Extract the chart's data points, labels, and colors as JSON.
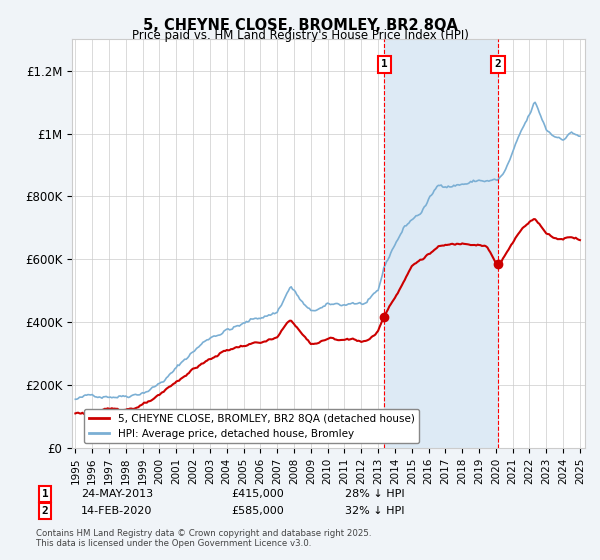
{
  "title": "5, CHEYNE CLOSE, BROMLEY, BR2 8QA",
  "subtitle": "Price paid vs. HM Land Registry's House Price Index (HPI)",
  "ylim": [
    0,
    1300000
  ],
  "yticks": [
    0,
    200000,
    400000,
    600000,
    800000,
    1000000,
    1200000
  ],
  "ytick_labels": [
    "£0",
    "£200K",
    "£400K",
    "£600K",
    "£800K",
    "£1M",
    "£1.2M"
  ],
  "x_start_year": 1995,
  "x_end_year": 2025,
  "purchase1_year": 2013.37,
  "purchase1_price": 415000,
  "purchase1_date": "24-MAY-2013",
  "purchase1_hpi": "28% ↓ HPI",
  "purchase2_year": 2020.12,
  "purchase2_price": 585000,
  "purchase2_date": "14-FEB-2020",
  "purchase2_hpi": "32% ↓ HPI",
  "hpi_line_color": "#7bafd4",
  "hpi_fill_color": "#ddeaf5",
  "property_color": "#cc0000",
  "shade_between_color": "#ddeaf5",
  "legend_label_property": "5, CHEYNE CLOSE, BROMLEY, BR2 8QA (detached house)",
  "legend_label_hpi": "HPI: Average price, detached house, Bromley",
  "footnote": "Contains HM Land Registry data © Crown copyright and database right 2025.\nThis data is licensed under the Open Government Licence v3.0.",
  "bg_color": "#f0f4f8",
  "plot_bg": "#ffffff"
}
